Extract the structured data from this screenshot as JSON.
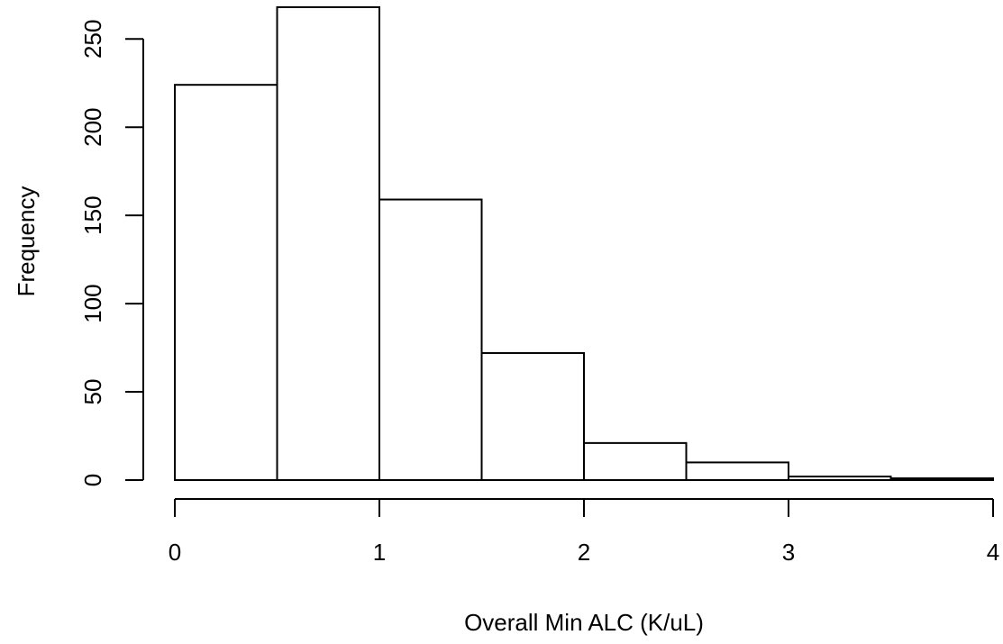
{
  "chart_data": {
    "type": "bar",
    "title": "",
    "xlabel": "Overall Min ALC (K/uL)",
    "ylabel": "Frequency",
    "bins": [
      {
        "x0": 0.0,
        "x1": 0.5,
        "count": 224
      },
      {
        "x0": 0.5,
        "x1": 1.0,
        "count": 268
      },
      {
        "x0": 1.0,
        "x1": 1.5,
        "count": 159
      },
      {
        "x0": 1.5,
        "x1": 2.0,
        "count": 72
      },
      {
        "x0": 2.0,
        "x1": 2.5,
        "count": 21
      },
      {
        "x0": 2.5,
        "x1": 3.0,
        "count": 10
      },
      {
        "x0": 3.0,
        "x1": 3.5,
        "count": 2
      },
      {
        "x0": 3.5,
        "x1": 4.0,
        "count": 1
      }
    ],
    "xlim": [
      0,
      4
    ],
    "ylim": [
      0,
      268
    ],
    "xticks": [
      0,
      1,
      2,
      3,
      4
    ],
    "xtick_labels": [
      "0",
      "1",
      "2",
      "3",
      "4"
    ],
    "yticks": [
      0,
      50,
      100,
      150,
      200,
      250
    ],
    "ytick_labels": [
      "0",
      "50",
      "100",
      "150",
      "200",
      "250"
    ],
    "grid": false,
    "colors": {
      "bar_fill": "#ffffff",
      "bar_stroke": "#000000",
      "axis": "#000000"
    }
  }
}
